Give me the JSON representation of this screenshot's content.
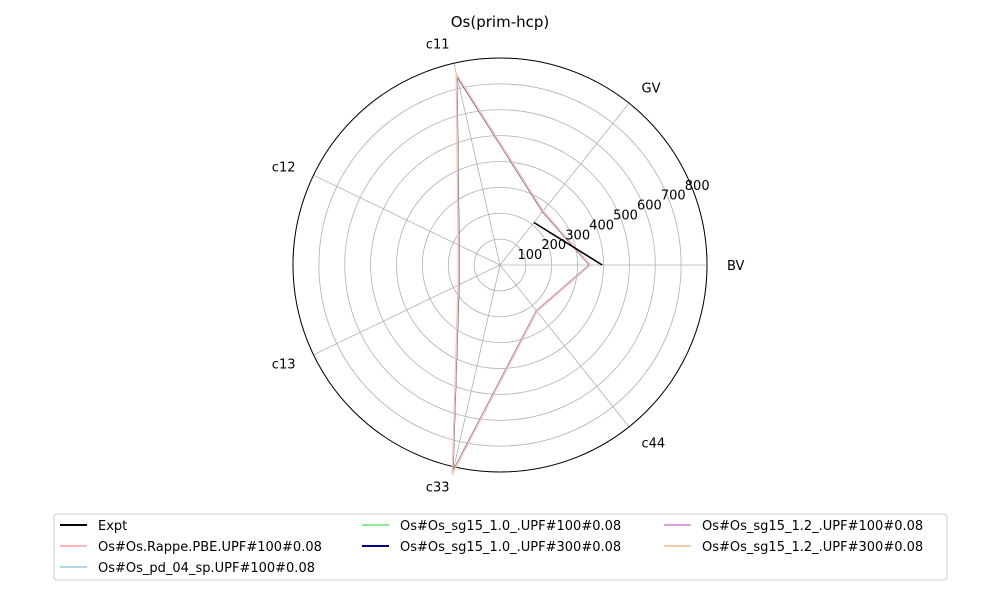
{
  "chart_data": {
    "type": "radar",
    "title": "Os(prim-hcp)",
    "axes": [
      "BV",
      "GV",
      "c11",
      "c12",
      "c13",
      "c33",
      "c44"
    ],
    "radial_ticks": [
      100,
      200,
      300,
      400,
      500,
      600,
      700,
      800
    ],
    "rlim": [
      0,
      800
    ],
    "grid": true,
    "legend_position": "bottom",
    "series": [
      {
        "name": "Expt",
        "color": "#000000",
        "values": [
          395,
          210,
          null,
          null,
          null,
          null,
          null
        ]
      },
      {
        "name": "Os#Os.Rappe.PBE.UPF#100#0.08",
        "color": "#ffb6c1",
        "values": [
          350,
          268,
          760,
          180,
          180,
          830,
          230
        ]
      },
      {
        "name": "Os#Os_pd_04_sp.UPF#100#0.08",
        "color": "#add8e6",
        "values": [
          348,
          265,
          750,
          178,
          178,
          820,
          228
        ]
      },
      {
        "name": "Os#Os_sg15_1.0_.UPF#100#0.08",
        "color": "#90ee90",
        "values": [
          346,
          264,
          748,
          176,
          176,
          818,
          226
        ]
      },
      {
        "name": "Os#Os_sg15_1.0_.UPF#300#0.08",
        "color": "#00008b",
        "values": [
          346,
          264,
          748,
          176,
          176,
          818,
          226
        ]
      },
      {
        "name": "Os#Os_sg15_1.2_.UPF#100#0.08",
        "color": "#dda0dd",
        "values": [
          347,
          265,
          752,
          177,
          177,
          822,
          227
        ]
      },
      {
        "name": "Os#Os_sg15_1.2_.UPF#300#0.08",
        "color": "#f5cba7",
        "values": [
          349,
          267,
          756,
          179,
          179,
          826,
          229
        ]
      }
    ]
  }
}
